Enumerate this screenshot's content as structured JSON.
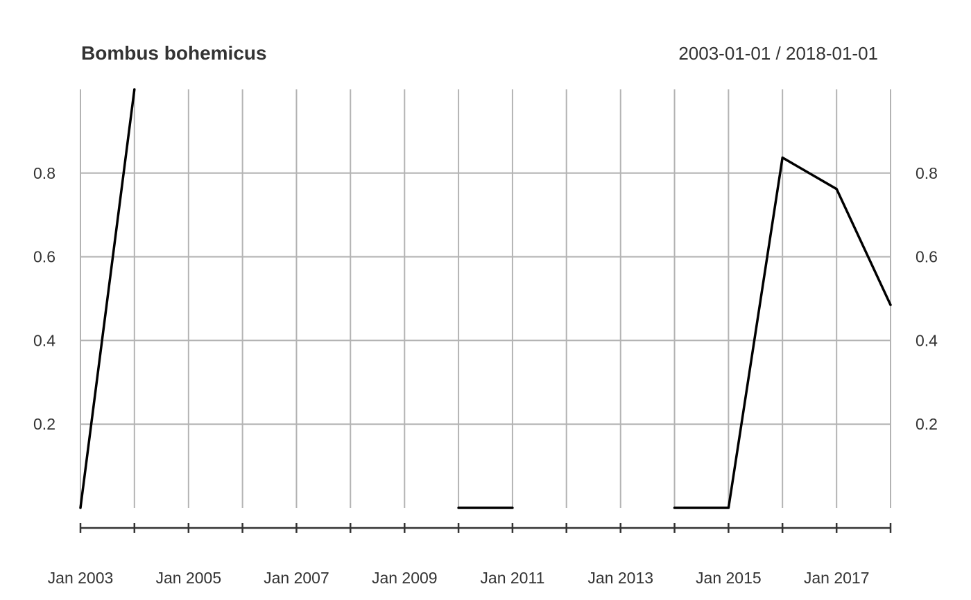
{
  "chart_data": {
    "type": "line",
    "title": "Bombus bohemicus",
    "date_range_label": "2003-01-01 / 2018-01-01",
    "x_labels": [
      "Jan 2003",
      "Jan 2005",
      "Jan 2007",
      "Jan 2009",
      "Jan 2011",
      "Jan 2013",
      "Jan 2015",
      "Jan 2017"
    ],
    "x_grid_years": [
      2003,
      2004,
      2005,
      2006,
      2007,
      2008,
      2009,
      2010,
      2011,
      2012,
      2013,
      2014,
      2015,
      2016,
      2017,
      2018
    ],
    "y_ticks": [
      "0.2",
      "0.4",
      "0.6",
      "0.8"
    ],
    "ylim": [
      0,
      1
    ],
    "xlim": [
      "2003-01-01",
      "2018-01-01"
    ],
    "grid": true,
    "series": [
      {
        "color": "#000000",
        "segments": [
          [
            {
              "x": "2003-01-01",
              "y": 0.0
            },
            {
              "x": "2004-01-01",
              "y": 1.0
            }
          ],
          [
            {
              "x": "2010-01-01",
              "y": 0.0
            },
            {
              "x": "2011-01-01",
              "y": 0.0
            }
          ],
          [
            {
              "x": "2014-01-01",
              "y": 0.0
            },
            {
              "x": "2015-01-01",
              "y": 0.0
            },
            {
              "x": "2016-01-01",
              "y": 0.837
            },
            {
              "x": "2017-01-01",
              "y": 0.762
            },
            {
              "x": "2018-01-01",
              "y": 0.485
            }
          ]
        ]
      }
    ]
  }
}
